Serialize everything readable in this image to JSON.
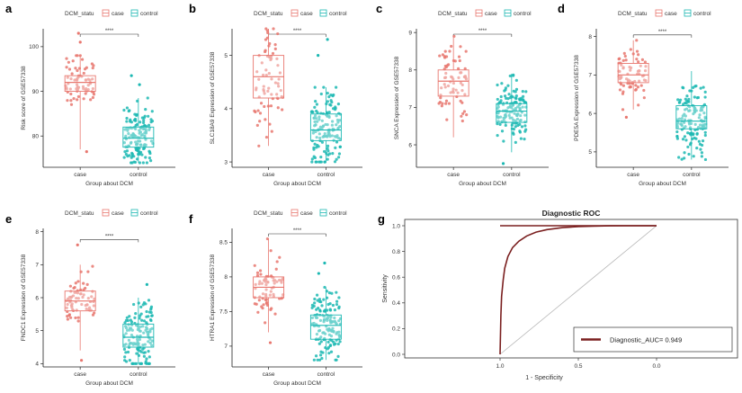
{
  "colors": {
    "case": "#e8776f",
    "control": "#1cb8b3",
    "roc_curve": "#7a1f1f",
    "reference_line": "#b8b8b8",
    "panel_bg": "#ebebeb"
  },
  "chart_data": [
    {
      "panel": "a",
      "type": "boxplot",
      "legend_title": "DCM_statu",
      "legend_case": "case",
      "legend_control": "control",
      "ylabel": "Risk score of GSE57338",
      "xlabel": "Group about DCM",
      "categories": [
        "case",
        "control"
      ],
      "significance": "****",
      "ylim": [
        73,
        104
      ],
      "yticks": [
        80,
        90,
        100
      ],
      "boxes": [
        {
          "group": "case",
          "min": 77,
          "q1": 90,
          "median": 92,
          "q3": 93.5,
          "max": 98,
          "outliers": [
            103,
            101,
            76.5
          ],
          "n": 70
        },
        {
          "group": "control",
          "min": 74,
          "q1": 77.5,
          "median": 79.5,
          "q3": 82,
          "max": 88.5,
          "outliers": [
            93.5,
            91.5
          ],
          "n": 140
        }
      ]
    },
    {
      "panel": "b",
      "type": "boxplot",
      "legend_title": "DCM_statu",
      "legend_case": "case",
      "legend_control": "control",
      "ylabel": "SLC18A9 Expression of GSE57338",
      "xlabel": "Group about DCM",
      "categories": [
        "case",
        "control"
      ],
      "significance": "****",
      "ylim": [
        2.9,
        5.5
      ],
      "yticks": [
        3,
        4,
        5
      ],
      "boxes": [
        {
          "group": "case",
          "min": 3.3,
          "q1": 4.2,
          "median": 4.6,
          "q3": 5.0,
          "max": 5.5,
          "outliers": [],
          "n": 70
        },
        {
          "group": "control",
          "min": 3.0,
          "q1": 3.4,
          "median": 3.6,
          "q3": 3.9,
          "max": 4.4,
          "outliers": [
            5.3,
            5.0
          ],
          "n": 140
        }
      ]
    },
    {
      "panel": "c",
      "type": "boxplot",
      "legend_title": "DCM_statu",
      "legend_case": "case",
      "legend_control": "control",
      "ylabel": "SNCA Expression of GSE57338",
      "xlabel": "Group about DCM",
      "categories": [
        "case",
        "control"
      ],
      "significance": "****",
      "ylim": [
        5.4,
        9.1
      ],
      "yticks": [
        6,
        7,
        8,
        9
      ],
      "boxes": [
        {
          "group": "case",
          "min": 6.2,
          "q1": 7.3,
          "median": 7.7,
          "q3": 8.0,
          "max": 8.9,
          "outliers": [],
          "n": 70
        },
        {
          "group": "control",
          "min": 5.8,
          "q1": 6.6,
          "median": 6.9,
          "q3": 7.1,
          "max": 7.9,
          "outliers": [
            5.5
          ],
          "n": 140
        }
      ]
    },
    {
      "panel": "d",
      "type": "boxplot",
      "legend_title": "DCM_statu",
      "legend_case": "case",
      "legend_control": "control",
      "ylabel": "PDE5A Expression of GSE57338",
      "xlabel": "Group about DCM",
      "categories": [
        "case",
        "control"
      ],
      "significance": "****",
      "ylim": [
        4.6,
        8.2
      ],
      "yticks": [
        5,
        6,
        7,
        8
      ],
      "boxes": [
        {
          "group": "case",
          "min": 6.1,
          "q1": 6.8,
          "median": 7.0,
          "q3": 7.3,
          "max": 7.9,
          "outliers": [
            5.9
          ],
          "n": 70
        },
        {
          "group": "control",
          "min": 4.8,
          "q1": 5.6,
          "median": 5.8,
          "q3": 6.2,
          "max": 7.1,
          "outliers": [],
          "n": 140
        }
      ]
    },
    {
      "panel": "e",
      "type": "boxplot",
      "legend_title": "DCM_statu",
      "legend_case": "case",
      "legend_control": "control",
      "ylabel": "FNDC1 Expression of GSE57338",
      "xlabel": "Group about DCM",
      "categories": [
        "case",
        "control"
      ],
      "significance": "****",
      "ylim": [
        3.9,
        8.1
      ],
      "yticks": [
        4,
        5,
        6,
        7,
        8
      ],
      "boxes": [
        {
          "group": "case",
          "min": 4.4,
          "q1": 5.6,
          "median": 5.9,
          "q3": 6.2,
          "max": 7.0,
          "outliers": [
            7.6,
            4.1
          ],
          "n": 70
        },
        {
          "group": "control",
          "min": 4.0,
          "q1": 4.5,
          "median": 4.8,
          "q3": 5.2,
          "max": 6.0,
          "outliers": [
            6.4
          ],
          "n": 140
        }
      ]
    },
    {
      "panel": "f",
      "type": "boxplot",
      "legend_title": "DCM_statu",
      "legend_case": "case",
      "legend_control": "control",
      "ylabel": "HTRA1 Expression of GSE57338",
      "xlabel": "Group about DCM",
      "categories": [
        "case",
        "control"
      ],
      "significance": "****",
      "ylim": [
        6.7,
        8.7
      ],
      "yticks": [
        7.0,
        7.5,
        8.0,
        8.5
      ],
      "boxes": [
        {
          "group": "case",
          "min": 7.2,
          "q1": 7.7,
          "median": 7.85,
          "q3": 8.0,
          "max": 8.55,
          "outliers": [
            7.05
          ],
          "n": 70
        },
        {
          "group": "control",
          "min": 6.8,
          "q1": 7.1,
          "median": 7.3,
          "q3": 7.45,
          "max": 7.85,
          "outliers": [
            8.2,
            8.05
          ],
          "n": 140
        }
      ]
    },
    {
      "panel": "g",
      "type": "line",
      "subtype": "roc",
      "title": "Diagnostic ROC",
      "xlabel": "1 - Specificity",
      "ylabel": "Sensitivity",
      "xlim": [
        1.0,
        0.0
      ],
      "ylim": [
        0.0,
        1.0
      ],
      "xticks": [
        1.0,
        0.5,
        0.0
      ],
      "yticks": [
        0.0,
        0.2,
        0.4,
        0.6,
        0.8,
        1.0
      ],
      "legend_label": "Diagnostic_AUC= 0.949",
      "series": [
        {
          "name": "Diagnostic",
          "auc": 0.949,
          "points": [
            [
              1.0,
              0.0
            ],
            [
              0.995,
              0.3
            ],
            [
              0.99,
              0.45
            ],
            [
              0.98,
              0.58
            ],
            [
              0.97,
              0.67
            ],
            [
              0.95,
              0.76
            ],
            [
              0.92,
              0.83
            ],
            [
              0.88,
              0.88
            ],
            [
              0.83,
              0.92
            ],
            [
              0.77,
              0.95
            ],
            [
              0.7,
              0.97
            ],
            [
              0.6,
              0.985
            ],
            [
              0.5,
              0.993
            ],
            [
              0.4,
              0.997
            ],
            [
              0.3,
              0.999
            ],
            [
              0.2,
              1.0
            ],
            [
              0.0,
              1.0
            ]
          ]
        }
      ],
      "reference_line": [
        [
          1.0,
          0.0
        ],
        [
          0.0,
          1.0
        ]
      ]
    }
  ]
}
